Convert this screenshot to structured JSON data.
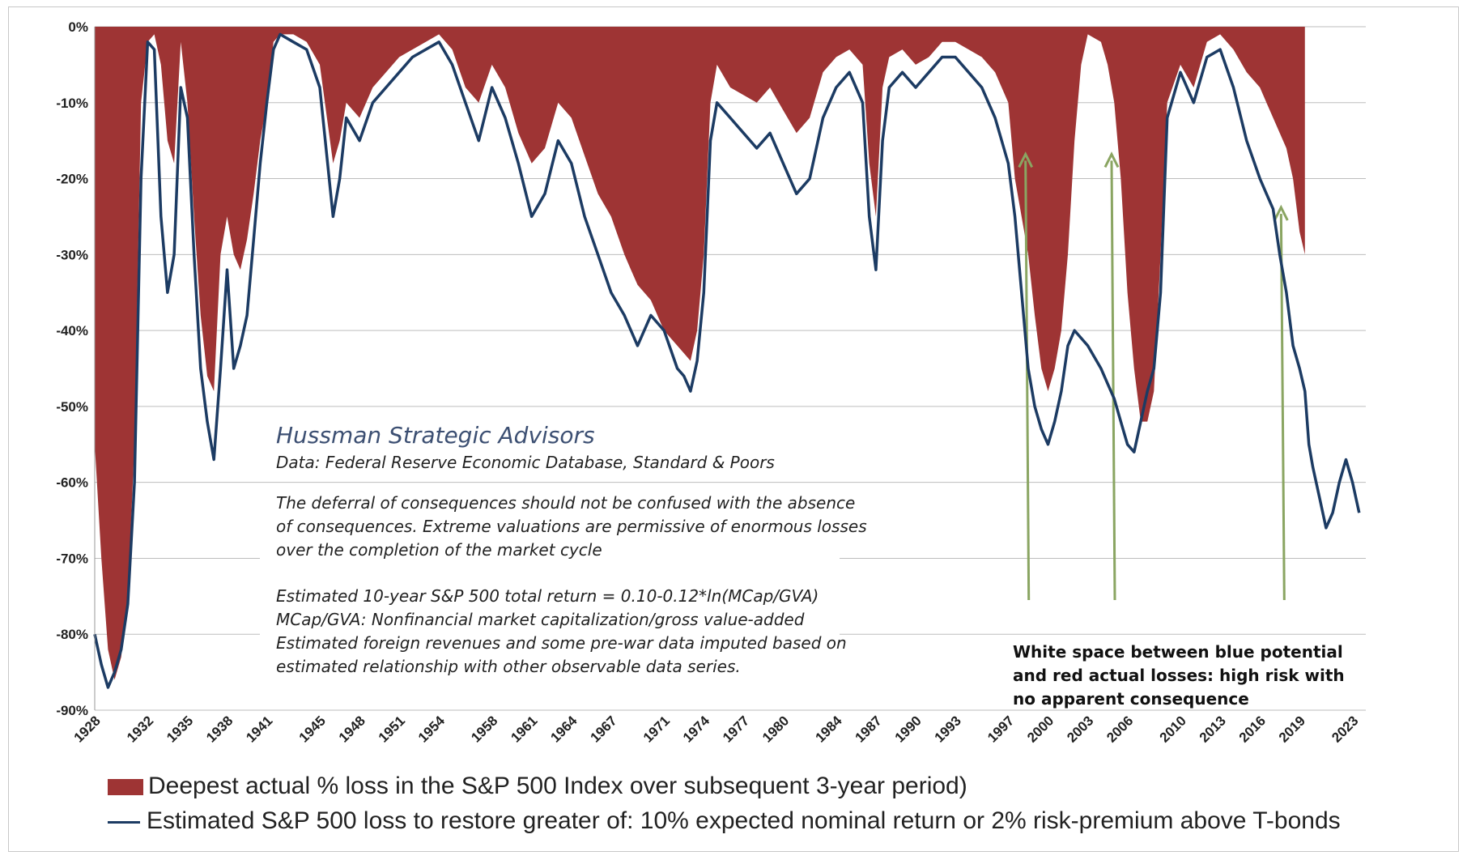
{
  "chart_data": {
    "type": "area",
    "title": "",
    "xlabel": "",
    "ylabel": "",
    "ylim": [
      -90,
      0
    ],
    "xlim": [
      1928,
      2024
    ],
    "y_ticks": [
      "0%",
      "-10%",
      "-20%",
      "-30%",
      "-40%",
      "-50%",
      "-60%",
      "-70%",
      "-80%",
      "-90%"
    ],
    "y_tick_values": [
      0,
      -10,
      -20,
      -30,
      -40,
      -50,
      -60,
      -70,
      -80,
      -90
    ],
    "x_ticks": [
      "1928",
      "1932",
      "1935",
      "1938",
      "1941",
      "1945",
      "1948",
      "1951",
      "1954",
      "1958",
      "1961",
      "1964",
      "1967",
      "1971",
      "1974",
      "1977",
      "1980",
      "1984",
      "1987",
      "1990",
      "1993",
      "1997",
      "2000",
      "2003",
      "2006",
      "2010",
      "2013",
      "2016",
      "2019",
      "2023"
    ],
    "grid": true,
    "legend_position": "bottom",
    "series": [
      {
        "name": "Deepest actual % loss in the S&P 500 Index over subsequent 3-year period)",
        "kind": "area",
        "color": "#9e3434",
        "x": [
          1928.0,
          1928.5,
          1929.0,
          1929.5,
          1930.0,
          1930.5,
          1931.0,
          1931.5,
          1932.0,
          1932.5,
          1933.0,
          1933.5,
          1934.0,
          1934.5,
          1935.0,
          1935.5,
          1936.0,
          1936.5,
          1937.0,
          1937.5,
          1938.0,
          1938.5,
          1939.0,
          1939.5,
          1940.0,
          1940.5,
          1941.0,
          1941.5,
          1942.0,
          1943.0,
          1944.0,
          1945.0,
          1946.0,
          1946.5,
          1947.0,
          1948.0,
          1949.0,
          1950.0,
          1951.0,
          1952.0,
          1953.0,
          1954.0,
          1955.0,
          1956.0,
          1957.0,
          1958.0,
          1959.0,
          1960.0,
          1961.0,
          1962.0,
          1963.0,
          1964.0,
          1965.0,
          1966.0,
          1967.0,
          1968.0,
          1968.5,
          1969.0,
          1970.0,
          1971.0,
          1972.0,
          1972.5,
          1973.0,
          1973.5,
          1974.0,
          1974.5,
          1975.0,
          1976.0,
          1977.0,
          1978.0,
          1979.0,
          1980.0,
          1981.0,
          1982.0,
          1983.0,
          1984.0,
          1985.0,
          1986.0,
          1986.5,
          1987.0,
          1987.5,
          1988.0,
          1989.0,
          1990.0,
          1991.0,
          1992.0,
          1993.0,
          1994.0,
          1995.0,
          1996.0,
          1997.0,
          1997.5,
          1998.0,
          1998.5,
          1999.0,
          1999.5,
          2000.0,
          2000.5,
          2001.0,
          2001.5,
          2002.0,
          2002.5,
          2003.0,
          2004.0,
          2004.5,
          2005.0,
          2005.5,
          2006.0,
          2006.5,
          2007.0,
          2007.5,
          2008.0,
          2008.5,
          2009.0,
          2010.0,
          2011.0,
          2012.0,
          2013.0,
          2014.0,
          2015.0,
          2016.0,
          2016.5,
          2017.0,
          2017.5,
          2018.0,
          2018.5,
          2019.0,
          2019.4
        ],
        "values": [
          -55,
          -70,
          -82,
          -86,
          -83,
          -75,
          -55,
          -10,
          -2,
          -1,
          -5,
          -15,
          -18,
          -2,
          -10,
          -25,
          -38,
          -46,
          -48,
          -30,
          -25,
          -30,
          -32,
          -28,
          -22,
          -15,
          -10,
          -2,
          -1,
          -1,
          -2,
          -5,
          -18,
          -15,
          -10,
          -12,
          -8,
          -6,
          -4,
          -3,
          -2,
          -1,
          -3,
          -8,
          -10,
          -5,
          -8,
          -14,
          -18,
          -16,
          -10,
          -12,
          -17,
          -22,
          -25,
          -30,
          -32,
          -34,
          -36,
          -40,
          -42,
          -43,
          -44,
          -40,
          -30,
          -10,
          -5,
          -8,
          -9,
          -10,
          -8,
          -11,
          -14,
          -12,
          -6,
          -4,
          -3,
          -5,
          -18,
          -25,
          -8,
          -4,
          -3,
          -5,
          -4,
          -2,
          -2,
          -3,
          -4,
          -6,
          -10,
          -20,
          -25,
          -30,
          -38,
          -45,
          -48,
          -45,
          -40,
          -30,
          -15,
          -5,
          -1,
          -2,
          -5,
          -10,
          -20,
          -35,
          -45,
          -52,
          -52,
          -48,
          -30,
          -10,
          -5,
          -8,
          -2,
          -1,
          -3,
          -6,
          -8,
          -10,
          -12,
          -14,
          -16,
          -20,
          -27,
          -30
        ]
      },
      {
        "name": "Estimated S&P 500 loss to restore greater of: 10% expected nominal return or 2% risk-premium above T-bonds",
        "kind": "line",
        "color": "#1c3b63",
        "x": [
          1928.0,
          1928.5,
          1929.0,
          1929.5,
          1930.0,
          1930.5,
          1931.0,
          1931.5,
          1932.0,
          1932.5,
          1933.0,
          1933.5,
          1934.0,
          1934.5,
          1935.0,
          1935.5,
          1936.0,
          1936.5,
          1937.0,
          1937.5,
          1938.0,
          1938.5,
          1939.0,
          1939.5,
          1940.0,
          1940.5,
          1941.0,
          1941.5,
          1942.0,
          1943.0,
          1944.0,
          1945.0,
          1946.0,
          1946.5,
          1947.0,
          1948.0,
          1949.0,
          1950.0,
          1951.0,
          1952.0,
          1953.0,
          1954.0,
          1955.0,
          1956.0,
          1957.0,
          1958.0,
          1959.0,
          1960.0,
          1961.0,
          1962.0,
          1963.0,
          1964.0,
          1965.0,
          1966.0,
          1967.0,
          1968.0,
          1968.5,
          1969.0,
          1970.0,
          1971.0,
          1972.0,
          1972.5,
          1973.0,
          1973.5,
          1974.0,
          1974.5,
          1975.0,
          1976.0,
          1977.0,
          1978.0,
          1979.0,
          1980.0,
          1981.0,
          1982.0,
          1983.0,
          1984.0,
          1985.0,
          1986.0,
          1986.5,
          1987.0,
          1987.5,
          1988.0,
          1989.0,
          1990.0,
          1991.0,
          1992.0,
          1993.0,
          1994.0,
          1995.0,
          1996.0,
          1997.0,
          1997.5,
          1998.0,
          1998.5,
          1999.0,
          1999.5,
          2000.0,
          2000.5,
          2001.0,
          2001.5,
          2002.0,
          2002.5,
          2003.0,
          2004.0,
          2004.5,
          2005.0,
          2005.5,
          2006.0,
          2006.5,
          2007.0,
          2007.5,
          2008.0,
          2008.5,
          2009.0,
          2010.0,
          2011.0,
          2012.0,
          2013.0,
          2014.0,
          2015.0,
          2016.0,
          2016.5,
          2017.0,
          2017.5,
          2018.0,
          2018.5,
          2019.0,
          2019.4,
          2019.7,
          2020.0,
          2020.5,
          2021.0,
          2021.5,
          2022.0,
          2022.5,
          2023.0,
          2023.5
        ],
        "values": [
          -80,
          -84,
          -87,
          -85,
          -82,
          -76,
          -60,
          -20,
          -2,
          -3,
          -25,
          -35,
          -30,
          -8,
          -12,
          -30,
          -45,
          -52,
          -57,
          -45,
          -32,
          -45,
          -42,
          -38,
          -28,
          -18,
          -10,
          -3,
          -1,
          -2,
          -3,
          -8,
          -25,
          -20,
          -12,
          -15,
          -10,
          -8,
          -6,
          -4,
          -3,
          -2,
          -5,
          -10,
          -15,
          -8,
          -12,
          -18,
          -25,
          -22,
          -15,
          -18,
          -25,
          -30,
          -35,
          -38,
          -40,
          -42,
          -38,
          -40,
          -45,
          -46,
          -48,
          -44,
          -35,
          -15,
          -10,
          -12,
          -14,
          -16,
          -14,
          -18,
          -22,
          -20,
          -12,
          -8,
          -6,
          -10,
          -25,
          -32,
          -15,
          -8,
          -6,
          -8,
          -6,
          -4,
          -4,
          -6,
          -8,
          -12,
          -18,
          -25,
          -35,
          -45,
          -50,
          -53,
          -55,
          -52,
          -48,
          -42,
          -40,
          -41,
          -42,
          -45,
          -47,
          -49,
          -52,
          -55,
          -56,
          -52,
          -48,
          -45,
          -35,
          -12,
          -6,
          -10,
          -4,
          -3,
          -8,
          -15,
          -20,
          -22,
          -24,
          -30,
          -35,
          -42,
          -45,
          -48,
          -55,
          -58,
          -62,
          -66,
          -64,
          -60,
          -57,
          -60,
          -64
        ]
      }
    ],
    "annotations": [
      {
        "text": "White space between blue potential and red actual losses: high risk with no apparent consequence",
        "arrows_at_years": [
          1998.3,
          2004.8,
          2017.6
        ]
      }
    ]
  },
  "annotations_text": {
    "firm": "Hussman Strategic Advisors",
    "source": "Data: Federal Reserve Economic Database, Standard & Poors",
    "quote_lines": [
      "The deferral of consequences should not be confused with the absence",
      "of consequences.  Extreme valuations are permissive of enormous losses",
      "over the completion of the market cycle"
    ],
    "method_lines": [
      "Estimated 10-year S&P 500 total return = 0.10-0.12*ln(MCap/GVA)",
      "MCap/GVA: Nonfinancial market capitalization/gross value-added",
      "Estimated foreign revenues and some pre-war data imputed based on",
      "estimated relationship with other observable data series."
    ],
    "callout_lines": [
      "White space between blue potential",
      "and red actual losses: high risk with",
      "no apparent consequence"
    ]
  },
  "legend": {
    "area_label": "Deepest actual % loss in the S&P 500 Index over subsequent 3-year period)",
    "line_label": "Estimated S&P 500 loss to restore greater of: 10% expected nominal return or 2% risk-premium above T-bonds"
  },
  "colors": {
    "area": "#9e3434",
    "line": "#1c3b63",
    "arrow": "#8aa562",
    "grid": "#bdbdbd"
  }
}
